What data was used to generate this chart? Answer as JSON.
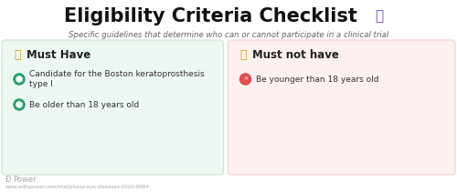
{
  "title": "Eligibility Criteria Checklist",
  "subtitle": "Specific guidelines that determine who can or cannot participate in a clinical trial",
  "title_fontsize": 15,
  "subtitle_fontsize": 6.2,
  "bg_color": "#ffffff",
  "left_box_color": "#ecf9f2",
  "right_box_color": "#fdf1f0",
  "left_box_edge": "#c8e6d4",
  "right_box_edge": "#f5cece",
  "left_header": "Must Have",
  "right_header": "Must not have",
  "left_header_color": "#d4a017",
  "right_header_color": "#d4a017",
  "left_items": [
    "Candidate for the Boston keratoprosthesis\ntype I",
    "Be older than 18 years old"
  ],
  "right_items": [
    "Be younger than 18 years old"
  ],
  "include_icon_color": "#2eaa6e",
  "include_icon_border": "#27925e",
  "exclude_icon_color": "#e05252",
  "exclude_icon_border": "#cc4444",
  "header_fontsize": 8.5,
  "item_fontsize": 6.5,
  "footer_text": "Power",
  "footer_url": "www.withpower.com/trial/phase-eye-diseases-2020-fl984",
  "footer_color": "#aaaaaa",
  "clipboard_icon_color": "#6644cc",
  "title_color": "#111111",
  "subtitle_color": "#666666"
}
